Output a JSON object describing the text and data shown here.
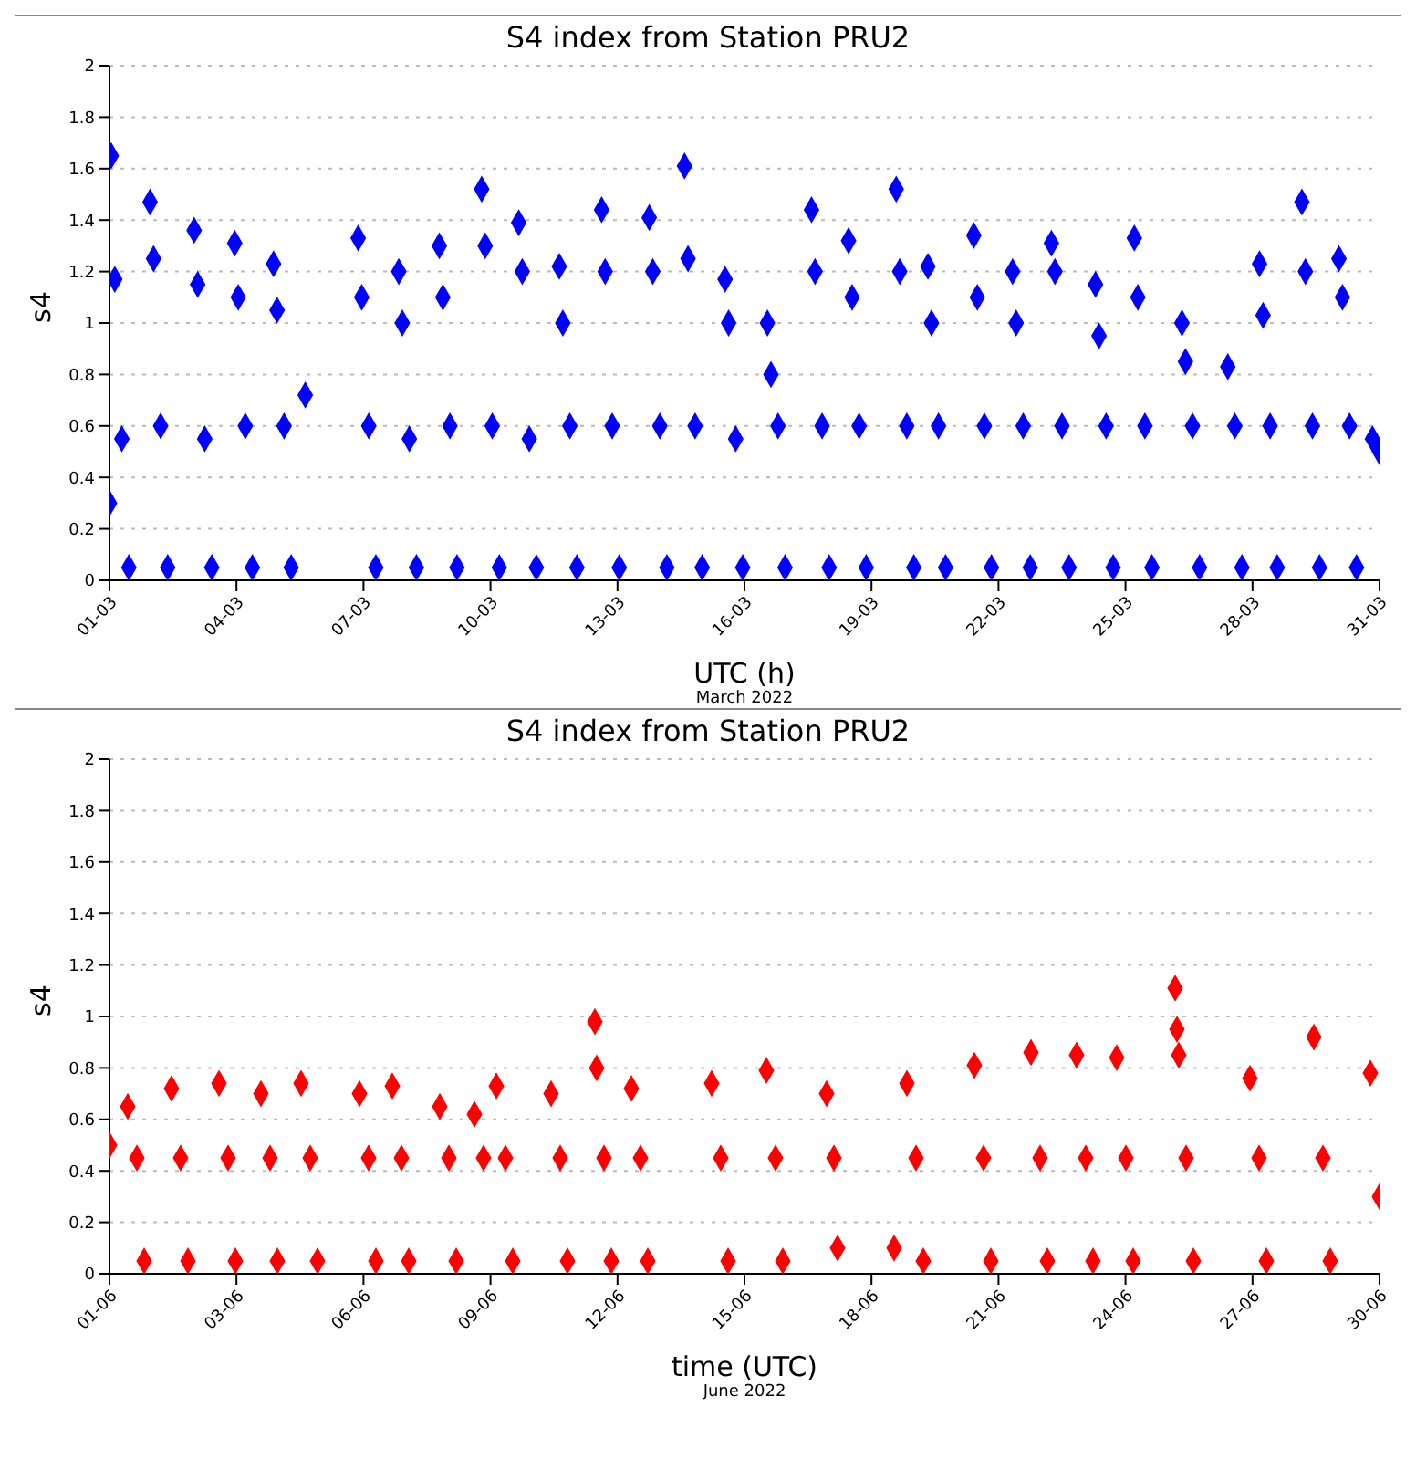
{
  "chart_data": [
    {
      "type": "scatter",
      "title": "S4 index from Station PRU2",
      "xlabel": "UTC (h)",
      "ylabel": "s4",
      "annotations": [
        "March 2022"
      ],
      "marker": "diamond",
      "grid": "y",
      "xlim": [
        "2022-03-01T00:00",
        "2022-03-31T00:00"
      ],
      "xticks": [
        {
          "value": "2022-03-01T00:00",
          "label": "01-03"
        },
        {
          "value": "2022-03-04T00:00",
          "label": "04-03"
        },
        {
          "value": "2022-03-07T00:00",
          "label": "07-03"
        },
        {
          "value": "2022-03-10T00:00",
          "label": "10-03"
        },
        {
          "value": "2022-03-13T00:00",
          "label": "13-03"
        },
        {
          "value": "2022-03-16T00:00",
          "label": "16-03"
        },
        {
          "value": "2022-03-19T00:00",
          "label": "19-03"
        },
        {
          "value": "2022-03-22T00:00",
          "label": "22-03"
        },
        {
          "value": "2022-03-25T00:00",
          "label": "25-03"
        },
        {
          "value": "2022-03-28T00:00",
          "label": "28-03"
        },
        {
          "value": "2022-03-31T00:00",
          "label": "31-03"
        }
      ],
      "ylim": [
        0,
        2
      ],
      "yticks": [
        0,
        0.2,
        0.4,
        0.6,
        0.8,
        1,
        1.2,
        1.4,
        1.6,
        1.8,
        2
      ],
      "x": [
        "2022-03-01T00:00",
        "2022-03-01T01:00",
        "2022-03-01T03:00",
        "2022-03-01T07:00",
        "2022-03-01T11:00",
        "2022-03-01T23:00",
        "2022-03-02T01:00",
        "2022-03-02T05:00",
        "2022-03-02T09:00",
        "2022-03-03T00:00",
        "2022-03-03T02:00",
        "2022-03-03T06:00",
        "2022-03-03T10:00",
        "2022-03-03T23:00",
        "2022-03-04T01:00",
        "2022-03-04T05:00",
        "2022-03-04T09:00",
        "2022-03-04T21:00",
        "2022-03-04T23:00",
        "2022-03-05T03:00",
        "2022-03-05T07:00",
        "2022-03-05T15:00",
        "2022-03-06T21:00",
        "2022-03-06T23:00",
        "2022-03-07T03:00",
        "2022-03-07T07:00",
        "2022-03-07T20:00",
        "2022-03-07T22:00",
        "2022-03-08T02:00",
        "2022-03-08T06:00",
        "2022-03-08T19:00",
        "2022-03-08T21:00",
        "2022-03-09T01:00",
        "2022-03-09T05:00",
        "2022-03-09T19:00",
        "2022-03-09T21:00",
        "2022-03-10T01:00",
        "2022-03-10T05:00",
        "2022-03-10T16:00",
        "2022-03-10T18:00",
        "2022-03-10T22:00",
        "2022-03-11T02:00",
        "2022-03-11T15:00",
        "2022-03-11T17:00",
        "2022-03-11T21:00",
        "2022-03-12T01:00",
        "2022-03-12T15:00",
        "2022-03-12T17:00",
        "2022-03-12T21:00",
        "2022-03-13T01:00",
        "2022-03-13T18:00",
        "2022-03-13T20:00",
        "2022-03-14T00:00",
        "2022-03-14T04:00",
        "2022-03-14T14:00",
        "2022-03-14T16:00",
        "2022-03-14T20:00",
        "2022-03-15T00:00",
        "2022-03-15T13:00",
        "2022-03-15T15:00",
        "2022-03-15T19:00",
        "2022-03-15T23:00",
        "2022-03-16T13:00",
        "2022-03-16T15:00",
        "2022-03-16T19:00",
        "2022-03-16T23:00",
        "2022-03-17T14:00",
        "2022-03-17T16:00",
        "2022-03-17T20:00",
        "2022-03-18T00:00",
        "2022-03-18T11:00",
        "2022-03-18T13:00",
        "2022-03-18T17:00",
        "2022-03-18T21:00",
        "2022-03-19T14:00",
        "2022-03-19T16:00",
        "2022-03-19T20:00",
        "2022-03-20T00:00",
        "2022-03-20T08:00",
        "2022-03-20T10:00",
        "2022-03-20T14:00",
        "2022-03-20T18:00",
        "2022-03-21T10:00",
        "2022-03-21T12:00",
        "2022-03-21T16:00",
        "2022-03-21T20:00",
        "2022-03-22T08:00",
        "2022-03-22T10:00",
        "2022-03-22T14:00",
        "2022-03-22T18:00",
        "2022-03-23T06:00",
        "2022-03-23T08:00",
        "2022-03-23T12:00",
        "2022-03-23T16:00",
        "2022-03-24T07:00",
        "2022-03-24T09:00",
        "2022-03-24T13:00",
        "2022-03-24T17:00",
        "2022-03-25T05:00",
        "2022-03-25T07:00",
        "2022-03-25T11:00",
        "2022-03-25T15:00",
        "2022-03-26T08:00",
        "2022-03-26T10:00",
        "2022-03-26T14:00",
        "2022-03-26T18:00",
        "2022-03-27T10:00",
        "2022-03-27T14:00",
        "2022-03-27T18:00",
        "2022-03-28T04:00",
        "2022-03-28T06:00",
        "2022-03-28T10:00",
        "2022-03-28T14:00",
        "2022-03-29T04:00",
        "2022-03-29T06:00",
        "2022-03-29T10:00",
        "2022-03-29T14:00",
        "2022-03-30T01:00",
        "2022-03-30T03:00",
        "2022-03-30T07:00",
        "2022-03-30T11:00",
        "2022-03-30T20:00",
        "2022-03-31T00:00"
      ],
      "series": [
        {
          "color": "#0000ff",
          "values": [
            0.3,
            1.65,
            1.17,
            0.55,
            0.05,
            1.47,
            1.25,
            0.6,
            0.05,
            1.36,
            1.15,
            0.55,
            0.05,
            1.31,
            1.1,
            0.6,
            0.05,
            1.23,
            1.05,
            0.6,
            0.05,
            0.72,
            1.33,
            1.1,
            0.6,
            0.05,
            1.2,
            1.0,
            0.55,
            0.05,
            1.3,
            1.1,
            0.6,
            0.05,
            1.52,
            1.3,
            0.6,
            0.05,
            1.39,
            1.2,
            0.55,
            0.05,
            1.22,
            1.0,
            0.6,
            0.05,
            1.44,
            1.2,
            0.6,
            0.05,
            1.41,
            1.2,
            0.6,
            0.05,
            1.61,
            1.25,
            0.6,
            0.05,
            1.17,
            1.0,
            0.55,
            0.05,
            1.0,
            0.8,
            0.6,
            0.05,
            1.44,
            1.2,
            0.6,
            0.05,
            1.32,
            1.1,
            0.6,
            0.05,
            1.52,
            1.2,
            0.6,
            0.05,
            1.22,
            1.0,
            0.6,
            0.05,
            1.34,
            1.1,
            0.6,
            0.05,
            1.2,
            1.0,
            0.6,
            0.05,
            1.31,
            1.2,
            0.6,
            0.05,
            1.15,
            0.95,
            0.6,
            0.05,
            1.33,
            1.1,
            0.6,
            0.05,
            1.0,
            0.85,
            0.6,
            0.05,
            0.83,
            0.6,
            0.05,
            1.23,
            1.03,
            0.6,
            0.05,
            1.47,
            1.2,
            0.6,
            0.05,
            1.25,
            1.1,
            0.6,
            0.05,
            0.55,
            0.5
          ]
        }
      ]
    },
    {
      "type": "scatter",
      "title": "S4 index from Station PRU2",
      "xlabel": "time (UTC)",
      "ylabel": "s4",
      "annotations": [
        "June 2022"
      ],
      "marker": "diamond",
      "grid": "y",
      "xlim": [
        "2022-06-01T00:00",
        "2022-06-30T00:00"
      ],
      "xticks": [
        {
          "value": "2022-06-01T00:00",
          "label": "01-06"
        },
        {
          "value": "2022-06-03T21:36",
          "label": "03-06"
        },
        {
          "value": "2022-06-06T19:12",
          "label": "06-06"
        },
        {
          "value": "2022-06-09T16:48",
          "label": "09-06"
        },
        {
          "value": "2022-06-12T14:24",
          "label": "12-06"
        },
        {
          "value": "2022-06-15T12:00",
          "label": "15-06"
        },
        {
          "value": "2022-06-18T09:36",
          "label": "18-06"
        },
        {
          "value": "2022-06-21T07:12",
          "label": "21-06"
        },
        {
          "value": "2022-06-24T04:48",
          "label": "24-06"
        },
        {
          "value": "2022-06-27T02:24",
          "label": "27-06"
        },
        {
          "value": "2022-06-30T00:00",
          "label": "30-06"
        }
      ],
      "ylim": [
        0,
        2
      ],
      "yticks": [
        0,
        0.2,
        0.4,
        0.6,
        0.8,
        1,
        1.2,
        1.4,
        1.6,
        1.8,
        2
      ],
      "x": [
        "2022-06-01T00:00",
        "2022-06-01T10:00",
        "2022-06-01T15:00",
        "2022-06-01T19:00",
        "2022-06-02T10:00",
        "2022-06-02T15:00",
        "2022-06-02T19:00",
        "2022-06-03T12:00",
        "2022-06-03T17:00",
        "2022-06-03T21:00",
        "2022-06-04T11:00",
        "2022-06-04T16:00",
        "2022-06-04T20:00",
        "2022-06-05T09:00",
        "2022-06-05T14:00",
        "2022-06-05T18:00",
        "2022-06-06T17:00",
        "2022-06-06T22:00",
        "2022-06-07T02:00",
        "2022-06-07T11:00",
        "2022-06-07T16:00",
        "2022-06-07T20:00",
        "2022-06-08T13:00",
        "2022-06-08T18:00",
        "2022-06-08T22:00",
        "2022-06-09T08:00",
        "2022-06-09T13:00",
        "2022-06-09T20:00",
        "2022-06-10T01:00",
        "2022-06-10T05:00",
        "2022-06-11T02:00",
        "2022-06-11T07:00",
        "2022-06-11T11:00",
        "2022-06-12T02:00",
        "2022-06-12T03:00",
        "2022-06-12T07:00",
        "2022-06-12T11:00",
        "2022-06-12T22:00",
        "2022-06-13T03:00",
        "2022-06-13T07:00",
        "2022-06-14T18:00",
        "2022-06-14T23:00",
        "2022-06-15T03:00",
        "2022-06-16T00:00",
        "2022-06-16T05:00",
        "2022-06-16T09:00",
        "2022-06-17T09:00",
        "2022-06-17T13:00",
        "2022-06-17T15:00",
        "2022-06-18T22:00",
        "2022-06-19T05:00",
        "2022-06-19T10:00",
        "2022-06-19T14:00",
        "2022-06-20T18:00",
        "2022-06-20T23:00",
        "2022-06-21T03:00",
        "2022-06-22T01:00",
        "2022-06-22T06:00",
        "2022-06-22T10:00",
        "2022-06-23T02:00",
        "2022-06-23T07:00",
        "2022-06-23T11:00",
        "2022-06-24T00:00",
        "2022-06-24T05:00",
        "2022-06-24T09:00",
        "2022-06-25T08:00",
        "2022-06-25T09:00",
        "2022-06-25T10:00",
        "2022-06-25T14:00",
        "2022-06-25T18:00",
        "2022-06-27T01:00",
        "2022-06-27T06:00",
        "2022-06-27T10:00",
        "2022-06-28T12:00",
        "2022-06-28T17:00",
        "2022-06-28T21:00",
        "2022-06-29T19:00",
        "2022-06-30T00:00"
      ],
      "series": [
        {
          "color": "#ff0000",
          "values": [
            0.5,
            0.65,
            0.45,
            0.05,
            0.72,
            0.45,
            0.05,
            0.74,
            0.45,
            0.05,
            0.7,
            0.45,
            0.05,
            0.74,
            0.45,
            0.05,
            0.7,
            0.45,
            0.05,
            0.73,
            0.45,
            0.05,
            0.65,
            0.45,
            0.05,
            0.62,
            0.45,
            0.73,
            0.45,
            0.05,
            0.7,
            0.45,
            0.05,
            0.98,
            0.8,
            0.45,
            0.05,
            0.72,
            0.45,
            0.05,
            0.74,
            0.45,
            0.05,
            0.79,
            0.45,
            0.05,
            0.7,
            0.45,
            0.1,
            0.1,
            0.74,
            0.45,
            0.05,
            0.81,
            0.45,
            0.05,
            0.86,
            0.45,
            0.05,
            0.85,
            0.45,
            0.05,
            0.84,
            0.45,
            0.05,
            1.11,
            0.95,
            0.85,
            0.45,
            0.05,
            0.76,
            0.45,
            0.05,
            0.92,
            0.45,
            0.05,
            0.78,
            0.3
          ]
        }
      ]
    }
  ]
}
